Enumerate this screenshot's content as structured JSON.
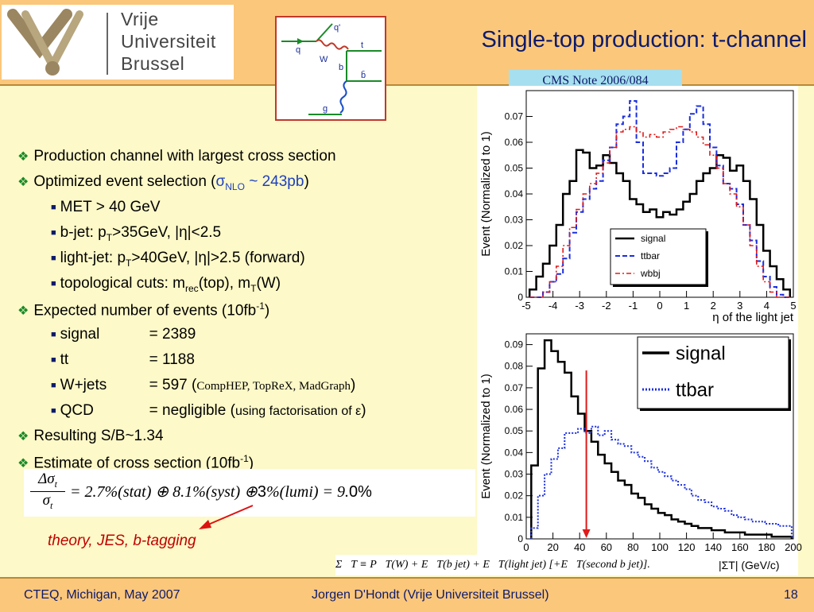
{
  "logo": {
    "line1": "Vrije",
    "line2": "Universiteit",
    "line3": "Brussel"
  },
  "title": "Single-top production: t-channel",
  "cms_note": "CMS Note 2006/084",
  "feynman": {
    "q_in": "q",
    "q_out": "q'",
    "w": "W",
    "t": "t",
    "b": "b",
    "bbar": "b̄",
    "g": "g"
  },
  "bullets": {
    "b1": "Production channel with largest cross section",
    "b2_pre": "Optimized event selection (",
    "b2_sigma": "σ",
    "b2_sub": "NLO",
    "b2_val": " ~ 243pb",
    "b2_post": ")",
    "met": "MET > 40 GeV",
    "bjet_a": "b-jet: p",
    "bjet_sub": "T",
    "bjet_b": ">35GeV, |η|<2.5",
    "ljet_a": "light-jet: p",
    "ljet_sub": "T",
    "ljet_b": ">40GeV, |η|>2.5 (forward)",
    "topo_a": "topological cuts: m",
    "topo_sub1": "rec",
    "topo_b": "(top), m",
    "topo_sub2": "T",
    "topo_c": "(W)",
    "exp_a": "Expected number of events (10fb",
    "exp_sup": "-1",
    "exp_b": ")",
    "signal_label": "signal",
    "signal_val": "= 2389",
    "tt_label": "tt",
    "tt_val": "= 1188",
    "wj_label": "W+jets",
    "wj_val": "=   597 (",
    "wj_gen": "CompHEP, TopReX, MadGraph",
    "wj_post": ")",
    "qcd_label": "QCD",
    "qcd_val": "= negligible (",
    "qcd_note": "using factorisation of ε",
    "qcd_post": ")",
    "sb": "Resulting S/B~1.34",
    "est_a": "Estimate of cross section (10fb",
    "est_sup": "-1",
    "est_b": ")"
  },
  "formula": {
    "num": "Δσ",
    "num_sub": "t",
    "den": "σ",
    "den_sub": "t",
    "rhs1": "= 2.7%(stat) ⊕ 8.1%(syst) ⊕",
    "three": "3",
    "rhs2": "%(lumi) = 9.",
    "tail": "0%"
  },
  "theory_note": "theory, JES, b-tagging",
  "formula2": {
    "text": "Σ⃗T ≡ P⃗T(W) + E⃗T(b jet) + E⃗T(light jet)  [+E⃗T(second b jet)].",
    "axis": "|ΣT| (GeV/c)"
  },
  "footer": {
    "left": "CTEQ, Michigan, May 2007",
    "center": "Jorgen D'Hondt  (Vrije Universiteit Brussel)",
    "page": "18"
  },
  "colors": {
    "signal": "#000000",
    "ttbar": "#1a2ee0",
    "wbbj": "#e01a1a",
    "accent": "#0d1a6b",
    "marker": "#1a8a28"
  },
  "chart_data": [
    {
      "type": "line",
      "ylabel": "Event (Normalized to 1)",
      "xlabel": "η of the light jet",
      "xlim": [
        -5,
        5
      ],
      "ylim": [
        0,
        0.08
      ],
      "xticks": [
        "-5",
        "-4",
        "-3",
        "-2",
        "-1",
        "0",
        "1",
        "2",
        "3",
        "4",
        "5"
      ],
      "yticks": [
        "0",
        "0.01",
        "0.02",
        "0.03",
        "0.04",
        "0.05",
        "0.06",
        "0.07"
      ],
      "legend": "top-right",
      "x": [
        -4.75,
        -4.5,
        -4.25,
        -4.0,
        -3.75,
        -3.5,
        -3.25,
        -3.0,
        -2.75,
        -2.5,
        -2.25,
        -2.0,
        -1.75,
        -1.5,
        -1.25,
        -1.0,
        -0.75,
        -0.5,
        -0.25,
        0.0,
        0.25,
        0.5,
        0.75,
        1.0,
        1.25,
        1.5,
        1.75,
        2.0,
        2.25,
        2.5,
        2.75,
        3.0,
        3.25,
        3.5,
        3.75,
        4.0,
        4.25,
        4.5,
        4.75
      ],
      "series": [
        {
          "name": "signal",
          "style": "solid",
          "values": [
            0.003,
            0.008,
            0.013,
            0.02,
            0.028,
            0.04,
            0.045,
            0.057,
            0.056,
            0.05,
            0.051,
            0.055,
            0.052,
            0.048,
            0.045,
            0.038,
            0.036,
            0.033,
            0.034,
            0.031,
            0.033,
            0.032,
            0.034,
            0.037,
            0.04,
            0.045,
            0.048,
            0.05,
            0.055,
            0.054,
            0.049,
            0.051,
            0.045,
            0.038,
            0.028,
            0.018,
            0.012,
            0.007,
            0.003
          ]
        },
        {
          "name": "ttbar",
          "style": "dashed",
          "values": [
            0.0,
            0.0,
            0.002,
            0.006,
            0.009,
            0.015,
            0.025,
            0.033,
            0.038,
            0.042,
            0.045,
            0.053,
            0.058,
            0.067,
            0.07,
            0.076,
            0.06,
            0.048,
            0.048,
            0.047,
            0.048,
            0.05,
            0.06,
            0.065,
            0.071,
            0.074,
            0.067,
            0.058,
            0.051,
            0.044,
            0.042,
            0.036,
            0.028,
            0.022,
            0.014,
            0.008,
            0.004,
            0.001,
            0.0
          ]
        },
        {
          "name": "wbbj",
          "style": "dashdot",
          "values": [
            0.0,
            0.0,
            0.002,
            0.006,
            0.012,
            0.02,
            0.027,
            0.034,
            0.04,
            0.044,
            0.048,
            0.052,
            0.058,
            0.064,
            0.065,
            0.066,
            0.064,
            0.062,
            0.063,
            0.062,
            0.064,
            0.065,
            0.066,
            0.065,
            0.064,
            0.062,
            0.059,
            0.055,
            0.05,
            0.044,
            0.04,
            0.035,
            0.028,
            0.02,
            0.012,
            0.006,
            0.002,
            0.0,
            0.0
          ]
        }
      ]
    },
    {
      "type": "line",
      "ylabel": "Event (Normalized to 1)",
      "xlabel": "|ΣT| (GeV/c)",
      "xlim": [
        0,
        200
      ],
      "ylim": [
        0,
        0.095
      ],
      "xticks": [
        "0",
        "20",
        "40",
        "60",
        "80",
        "100",
        "120",
        "140",
        "160",
        "180",
        "200"
      ],
      "yticks": [
        "0",
        "0.01",
        "0.02",
        "0.03",
        "0.04",
        "0.05",
        "0.06",
        "0.07",
        "0.08",
        "0.09"
      ],
      "legend": "top-right",
      "cut_marker_x": 45,
      "x": [
        6.25,
        11.25,
        16.25,
        21.25,
        26.25,
        31.25,
        36.25,
        41.25,
        46.25,
        51.25,
        56.25,
        61.25,
        66.25,
        71.25,
        76.25,
        81.25,
        86.25,
        91.25,
        96.25,
        101.25,
        106.25,
        111.25,
        116.25,
        121.25,
        126.25,
        131.25,
        136.25,
        141.25,
        146.25,
        151.25,
        156.25,
        161.25,
        166.25,
        171.25,
        176.25,
        181.25,
        186.25,
        191.25,
        196.25
      ],
      "series": [
        {
          "name": "signal",
          "style": "solid",
          "values": [
            0.034,
            0.079,
            0.092,
            0.087,
            0.082,
            0.077,
            0.066,
            0.058,
            0.05,
            0.045,
            0.039,
            0.035,
            0.031,
            0.027,
            0.025,
            0.021,
            0.019,
            0.016,
            0.014,
            0.012,
            0.011,
            0.009,
            0.008,
            0.007,
            0.006,
            0.005,
            0.005,
            0.004,
            0.004,
            0.003,
            0.003,
            0.003,
            0.002,
            0.002,
            0.002,
            0.002,
            0.001,
            0.001,
            0.001
          ]
        },
        {
          "name": "ttbar",
          "style": "dotted",
          "values": [
            0.005,
            0.02,
            0.03,
            0.037,
            0.042,
            0.049,
            0.049,
            0.051,
            0.049,
            0.052,
            0.048,
            0.05,
            0.046,
            0.044,
            0.043,
            0.04,
            0.038,
            0.036,
            0.033,
            0.031,
            0.029,
            0.027,
            0.025,
            0.023,
            0.02,
            0.018,
            0.017,
            0.015,
            0.014,
            0.013,
            0.011,
            0.01,
            0.009,
            0.008,
            0.008,
            0.007,
            0.007,
            0.006,
            0.006
          ]
        }
      ]
    }
  ]
}
